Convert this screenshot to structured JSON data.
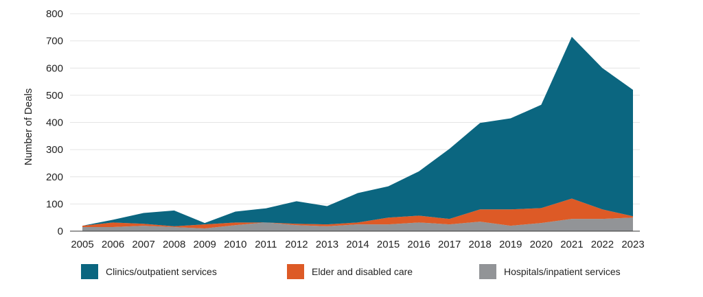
{
  "chart_data": {
    "type": "area",
    "stacked": true,
    "x": [
      2005,
      2006,
      2007,
      2008,
      2009,
      2010,
      2011,
      2012,
      2013,
      2014,
      2015,
      2016,
      2017,
      2018,
      2019,
      2020,
      2021,
      2022,
      2023
    ],
    "series": [
      {
        "name": "Hospitals/inpatient services",
        "color": "#929497",
        "values": [
          15,
          15,
          20,
          15,
          10,
          22,
          32,
          22,
          18,
          25,
          25,
          32,
          25,
          35,
          20,
          30,
          45,
          45,
          50
        ]
      },
      {
        "name": "Elder and disabled care",
        "color": "#dd5a26",
        "values": [
          5,
          17,
          7,
          3,
          15,
          10,
          0,
          5,
          7,
          7,
          25,
          25,
          20,
          45,
          60,
          55,
          75,
          35,
          5
        ]
      },
      {
        "name": "Clinics/outpatient services",
        "color": "#0b6680",
        "values": [
          0,
          10,
          40,
          58,
          5,
          40,
          52,
          83,
          67,
          108,
          115,
          163,
          258,
          318,
          335,
          380,
          595,
          520,
          465
        ]
      }
    ],
    "title": "",
    "xlabel": "",
    "ylabel": "Number of Deals",
    "ylim": [
      0,
      800
    ],
    "yticks": [
      0,
      100,
      200,
      300,
      400,
      500,
      600,
      700,
      800
    ],
    "grid": true,
    "legend_position": "bottom",
    "legend_order": [
      "Clinics/outpatient services",
      "Elder and disabled care",
      "Hospitals/inpatient services"
    ]
  }
}
